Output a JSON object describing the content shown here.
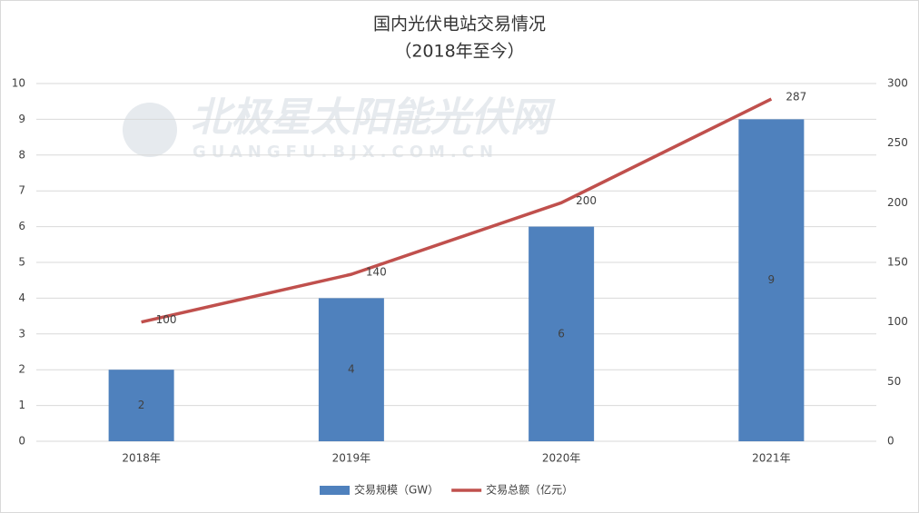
{
  "chart_data": {
    "type": "bar",
    "title": "国内光伏电站交易情况",
    "subtitle": "（2018年至今）",
    "watermark": [
      "北极星太阳能光伏网",
      "GUANGFU.BJX.COM.CN"
    ],
    "categories": [
      "2018年",
      "2019年",
      "2020年",
      "2021年"
    ],
    "series": [
      {
        "name": "交易规模（GW）",
        "type": "bar",
        "color": "#4f81bd",
        "values": [
          2,
          4,
          6,
          9
        ]
      },
      {
        "name": "交易总额（亿元）",
        "type": "line",
        "axis": "y2",
        "color": "#c0504d",
        "values": [
          100,
          140,
          200,
          287
        ]
      }
    ],
    "ylim": [
      0,
      10
    ],
    "yticks": [
      0,
      1,
      2,
      3,
      4,
      5,
      6,
      7,
      8,
      9,
      10
    ],
    "y2lim": [
      0,
      300
    ],
    "y2ticks": [
      0,
      50,
      100,
      150,
      200,
      250,
      300
    ],
    "grid": true,
    "legend": "bottom"
  }
}
